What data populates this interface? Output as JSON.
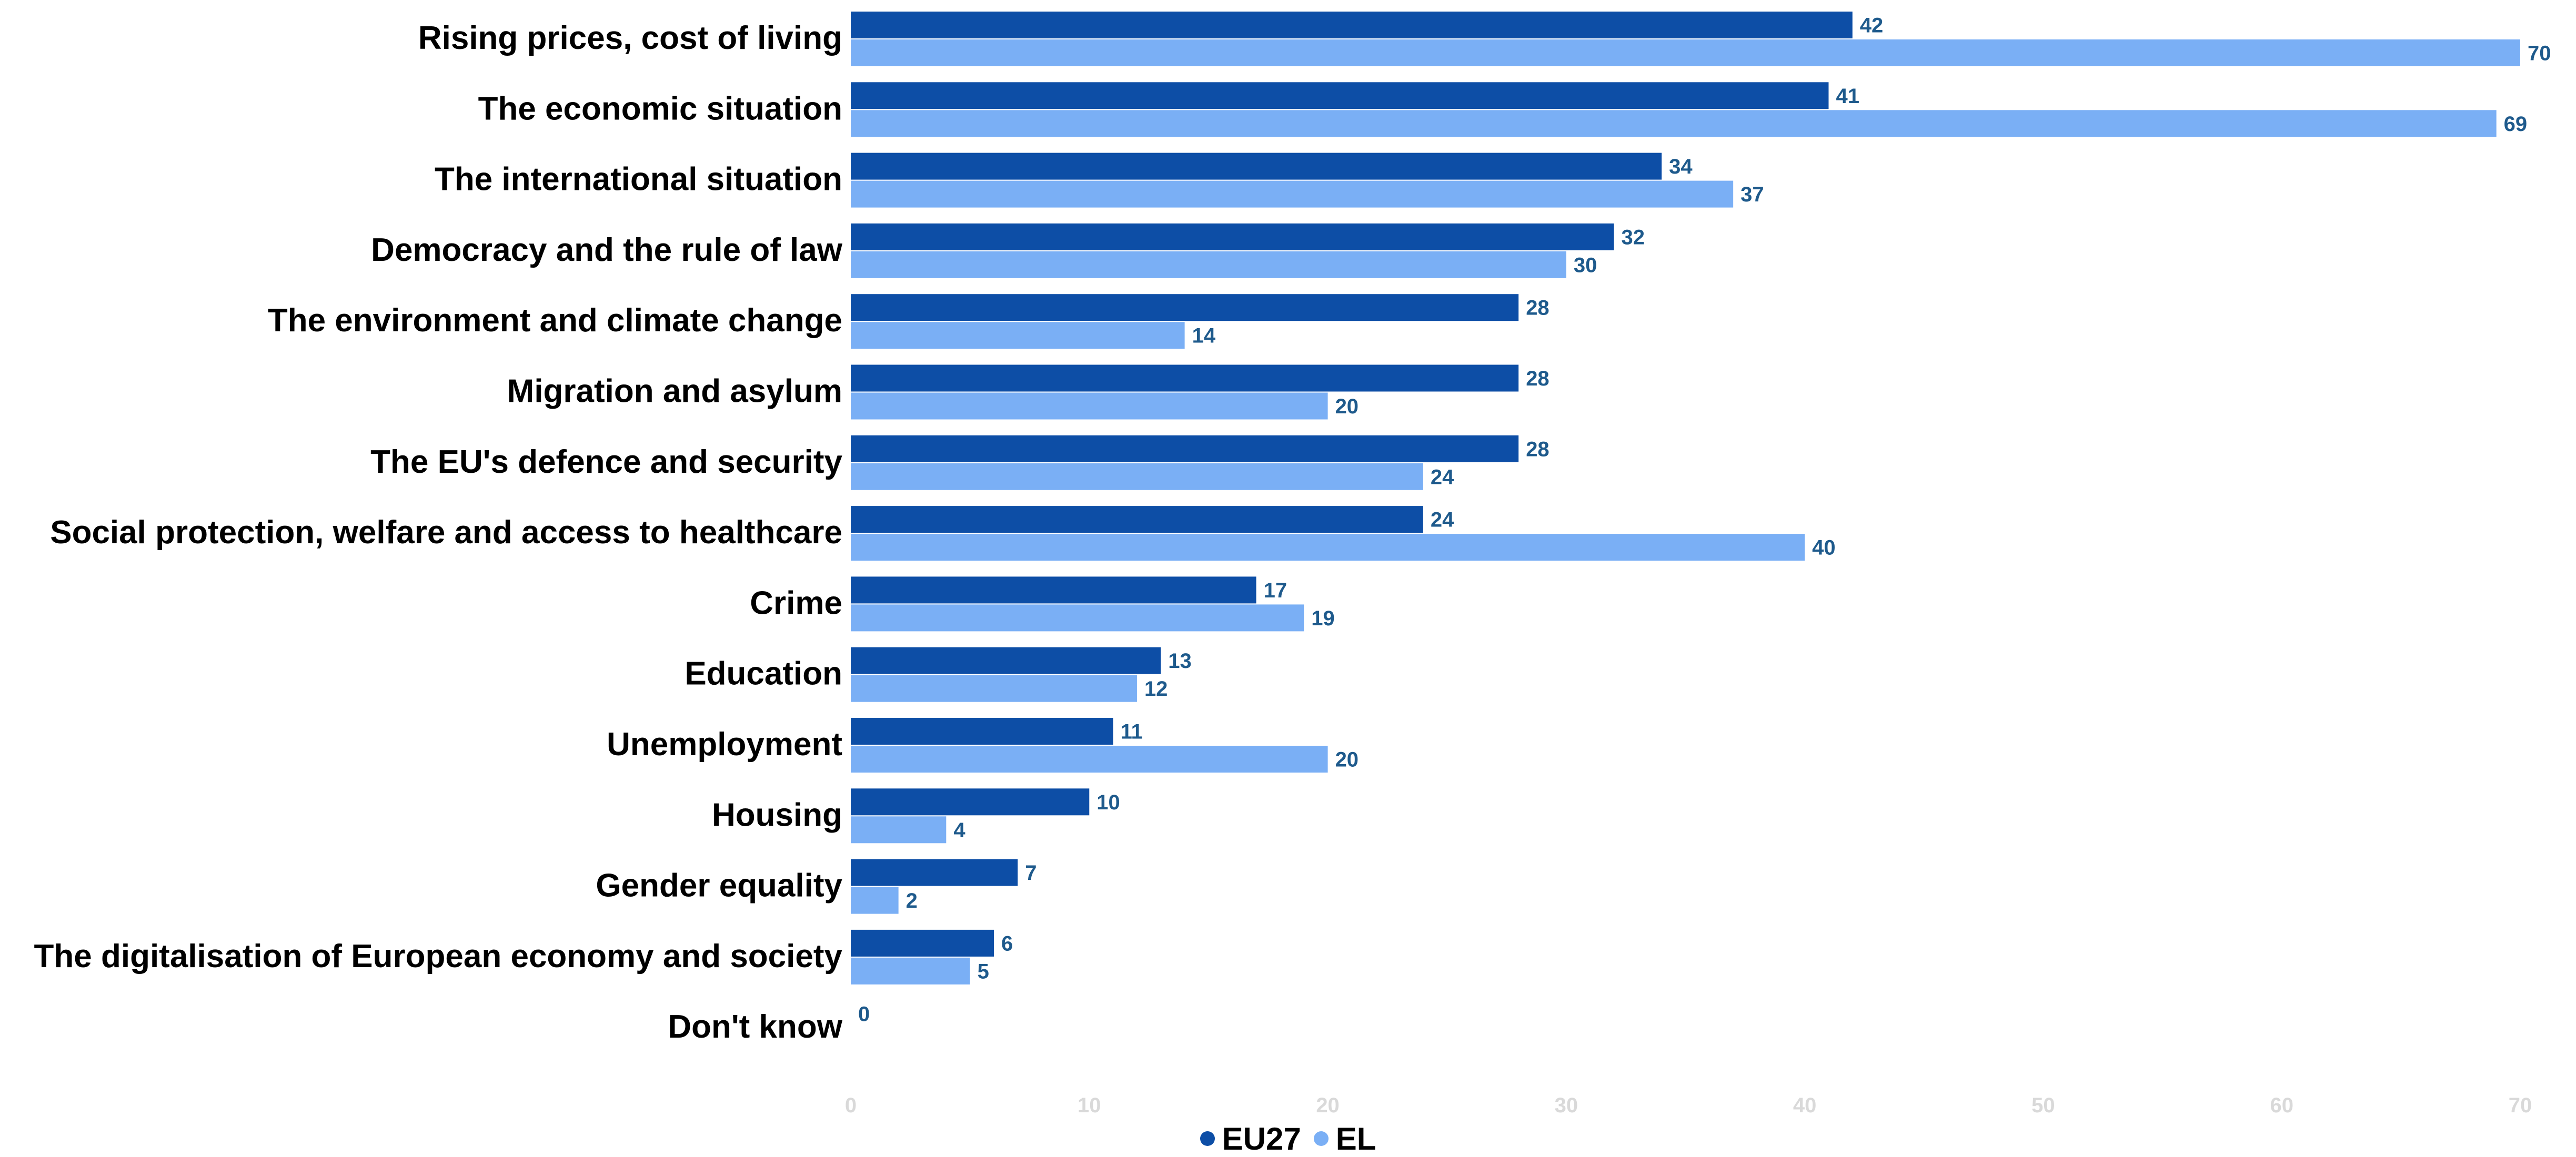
{
  "chart_data": {
    "type": "bar",
    "orientation": "horizontal",
    "categories": [
      "Rising prices, cost of living",
      "The economic situation",
      "The international situation",
      "Democracy and the rule of law",
      "The environment and climate change",
      "Migration and asylum",
      "The EU's defence and security",
      "Social protection, welfare and access to healthcare",
      "Crime",
      "Education",
      "Unemployment",
      "Housing",
      "Gender equality",
      "The digitalisation of European economy and society",
      "Don't know"
    ],
    "series": [
      {
        "name": "EU27",
        "color": "#0d4ea6",
        "values": [
          42,
          41,
          34,
          32,
          28,
          28,
          28,
          24,
          17,
          13,
          11,
          10,
          7,
          6,
          0
        ]
      },
      {
        "name": "EL",
        "color": "#7aaff5",
        "values": [
          70,
          69,
          37,
          30,
          14,
          20,
          24,
          40,
          19,
          12,
          20,
          4,
          2,
          5,
          null
        ]
      }
    ],
    "xlim": [
      0,
      70
    ],
    "xticks": [
      0,
      10,
      20,
      30,
      40,
      50,
      60,
      70
    ],
    "grid": false,
    "legend_position": "bottom-center",
    "data_labels": true
  },
  "legend": {
    "eu27": "EU27",
    "el": "EL"
  },
  "colors": {
    "eu27": "#0d4ea6",
    "el": "#7aaff5",
    "value_label": "#1e5a8c",
    "tick_label": "#d9d9d9"
  }
}
